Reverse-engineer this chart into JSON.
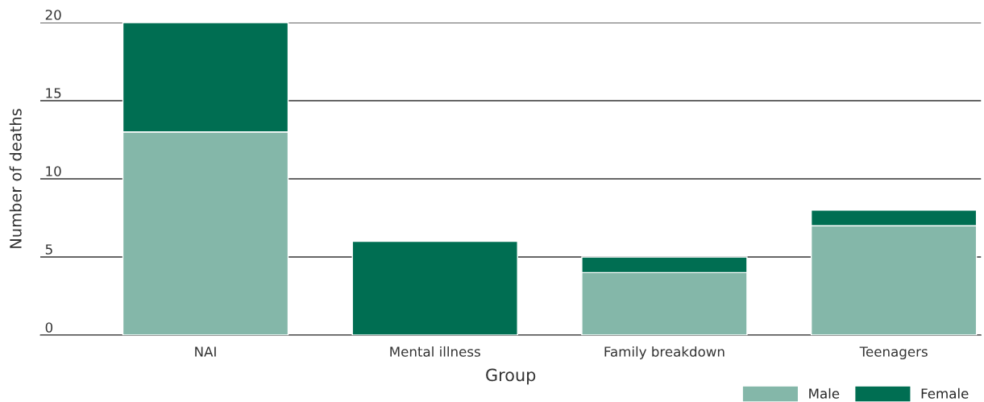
{
  "chart_data": {
    "type": "bar",
    "stacked": true,
    "xlabel": "Group",
    "ylabel": "Number of deaths",
    "categories": [
      "NAI",
      "Mental illness",
      "Family breakdown",
      "Teenagers"
    ],
    "series": [
      {
        "name": "Male",
        "color": "#84b7a9",
        "values": [
          13,
          0,
          4,
          7
        ]
      },
      {
        "name": "Female",
        "color": "#006e52",
        "values": [
          7,
          6,
          1,
          1
        ]
      }
    ],
    "ylim": [
      0,
      20
    ],
    "yticks": [
      0,
      5,
      10,
      15,
      20
    ],
    "grid": "y",
    "legend": "bottom right"
  }
}
